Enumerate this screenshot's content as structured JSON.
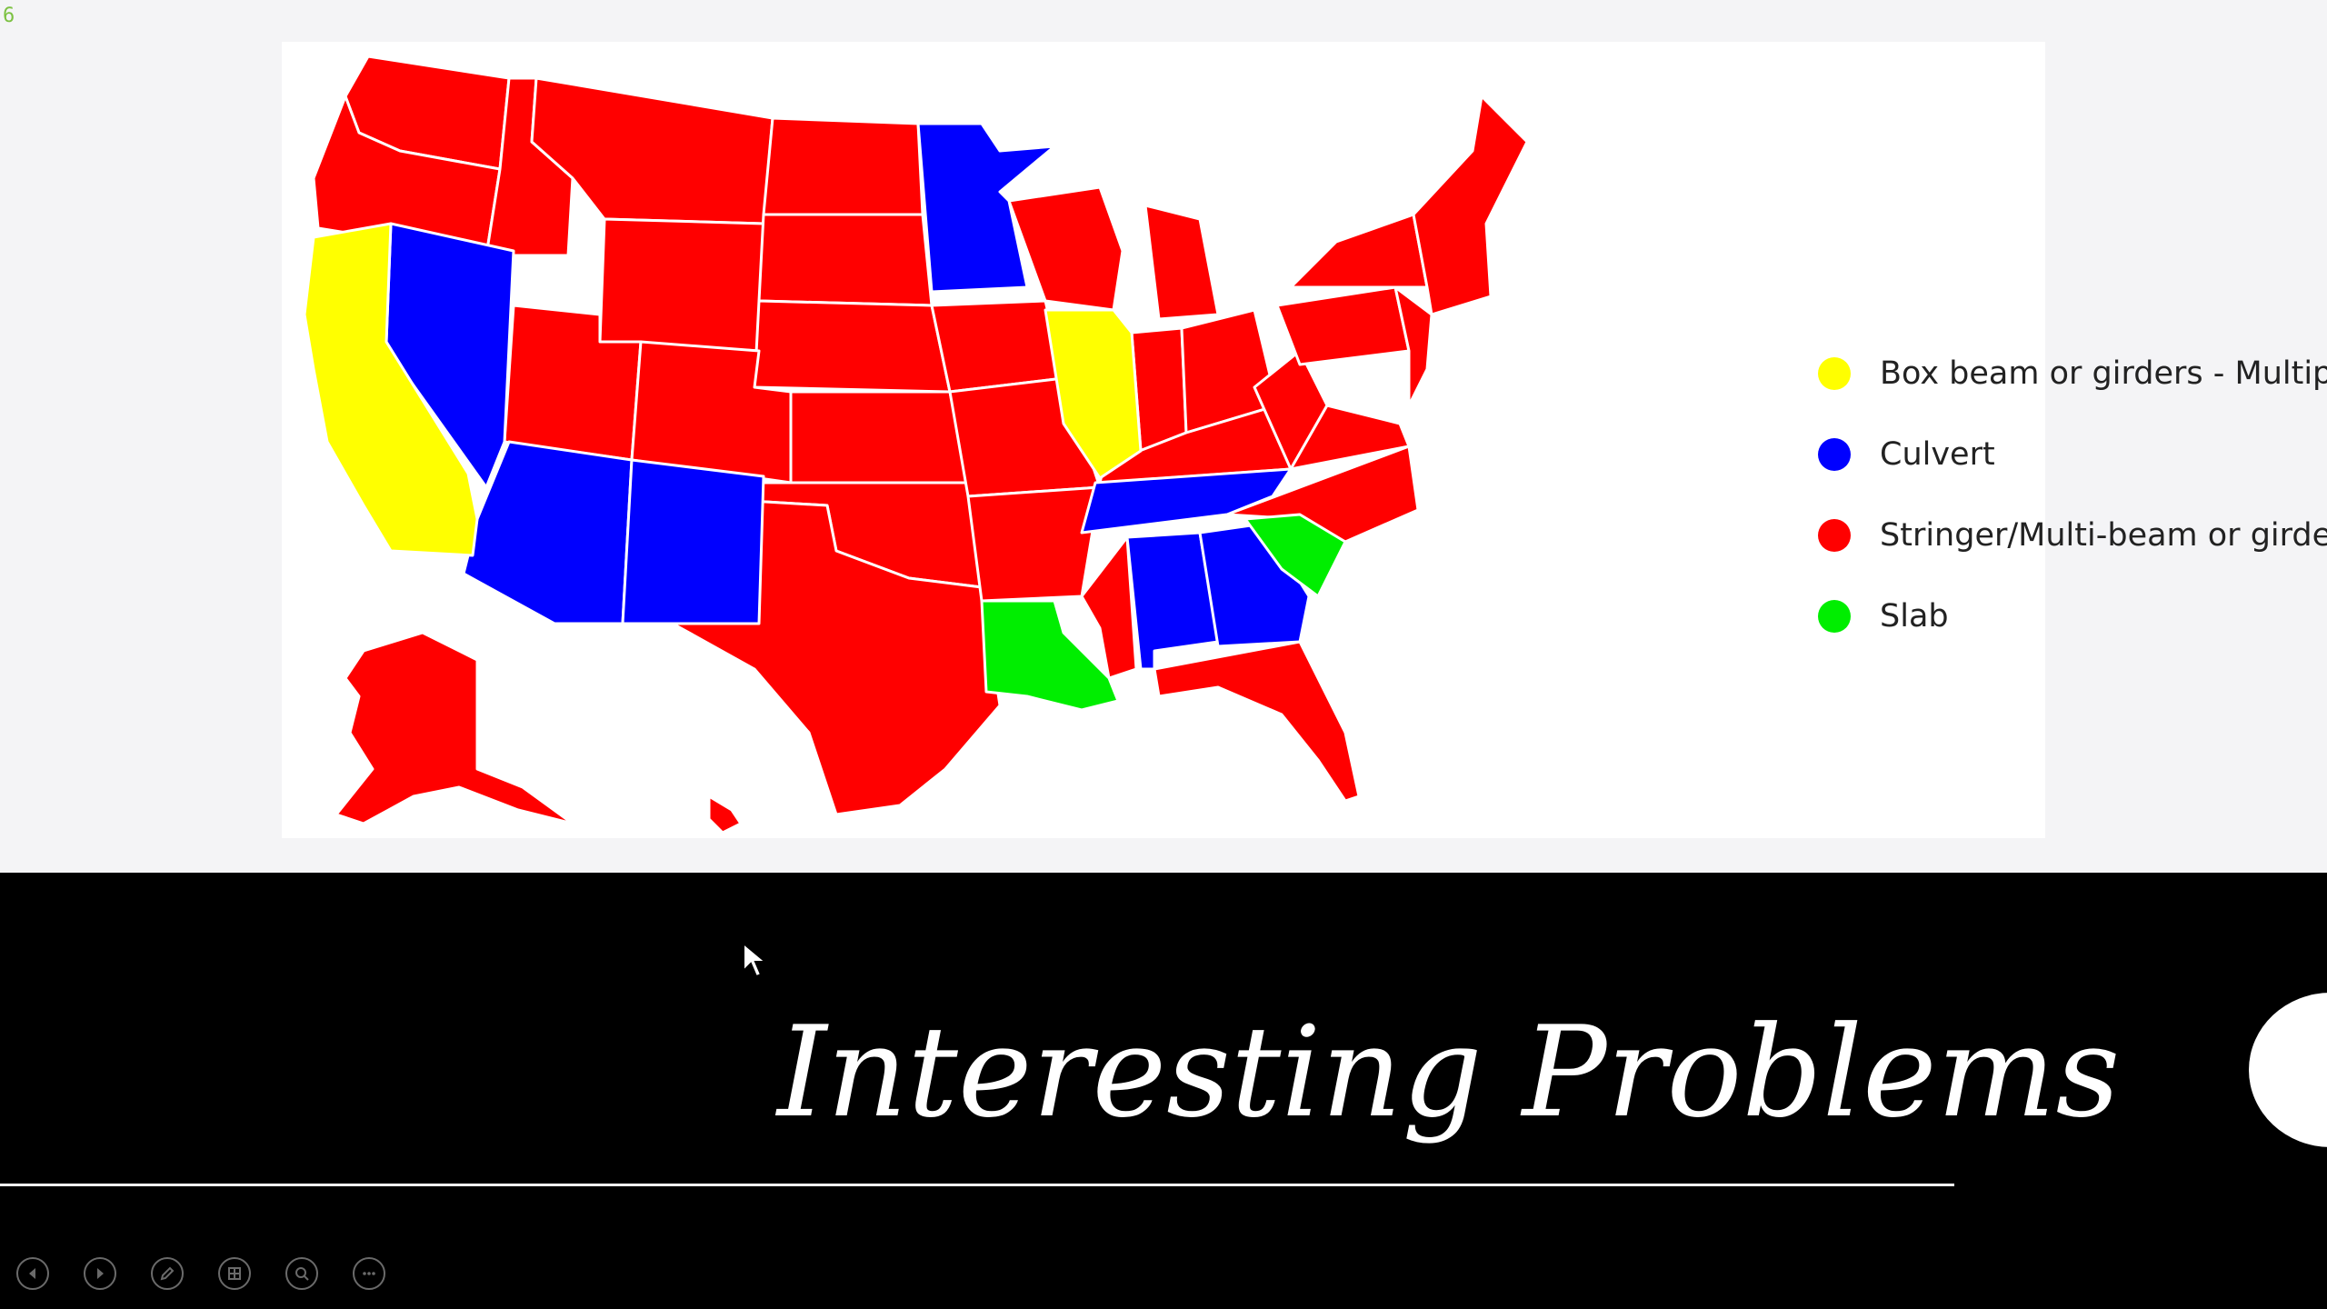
{
  "slide": {
    "number_badge": "6",
    "title": "Interesting Problems"
  },
  "map": {
    "legend": [
      {
        "label": "Box beam or girders - Multiple",
        "color": "#ffff00"
      },
      {
        "label": "Culvert",
        "color": "#0000ff"
      },
      {
        "label": "Stringer/Multi-beam or girder",
        "color": "#ff0000"
      },
      {
        "label": "Slab",
        "color": "#00ee00"
      }
    ]
  },
  "toolbar": {
    "buttons": [
      "previous-slide-icon",
      "next-slide-icon",
      "pen-icon",
      "see-all-slides-icon",
      "zoom-icon",
      "more-options-icon"
    ]
  },
  "colors": {
    "stringer": "#ff0000",
    "culvert": "#0000ff",
    "box_beam": "#ffff00",
    "slab": "#00ee00",
    "slide_bottom": "#000000"
  }
}
